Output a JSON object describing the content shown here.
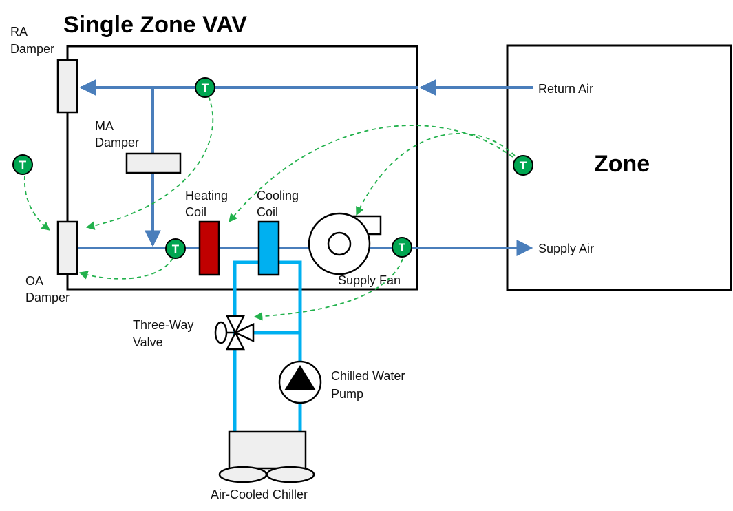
{
  "title": "Single Zone VAV",
  "zone_label": "Zone",
  "labels": {
    "ra_damper": [
      "RA",
      "Damper"
    ],
    "ma_damper": [
      "MA",
      "Damper"
    ],
    "oa_damper": [
      "OA",
      "Damper"
    ],
    "heating_coil": [
      "Heating",
      "Coil"
    ],
    "cooling_coil": [
      "Cooling",
      "Coil"
    ],
    "supply_fan": "Supply Fan",
    "return_air": "Return Air",
    "supply_air": "Supply Air",
    "three_way_valve": [
      "Three-Way",
      "Valve"
    ],
    "chilled_water_pump": [
      "Chilled Water",
      "Pump"
    ],
    "air_cooled_chiller": "Air-Cooled Chiller"
  },
  "sensor_letter": "T",
  "colors": {
    "air_duct": "#4a7ebb",
    "water_pipe": "#00b0f0",
    "sensor_fill": "#00a651",
    "control_line": "#22b14c",
    "heating_coil": "#c00000",
    "cooling_coil": "#00b0f0",
    "equipment_fill": "#efefef"
  }
}
